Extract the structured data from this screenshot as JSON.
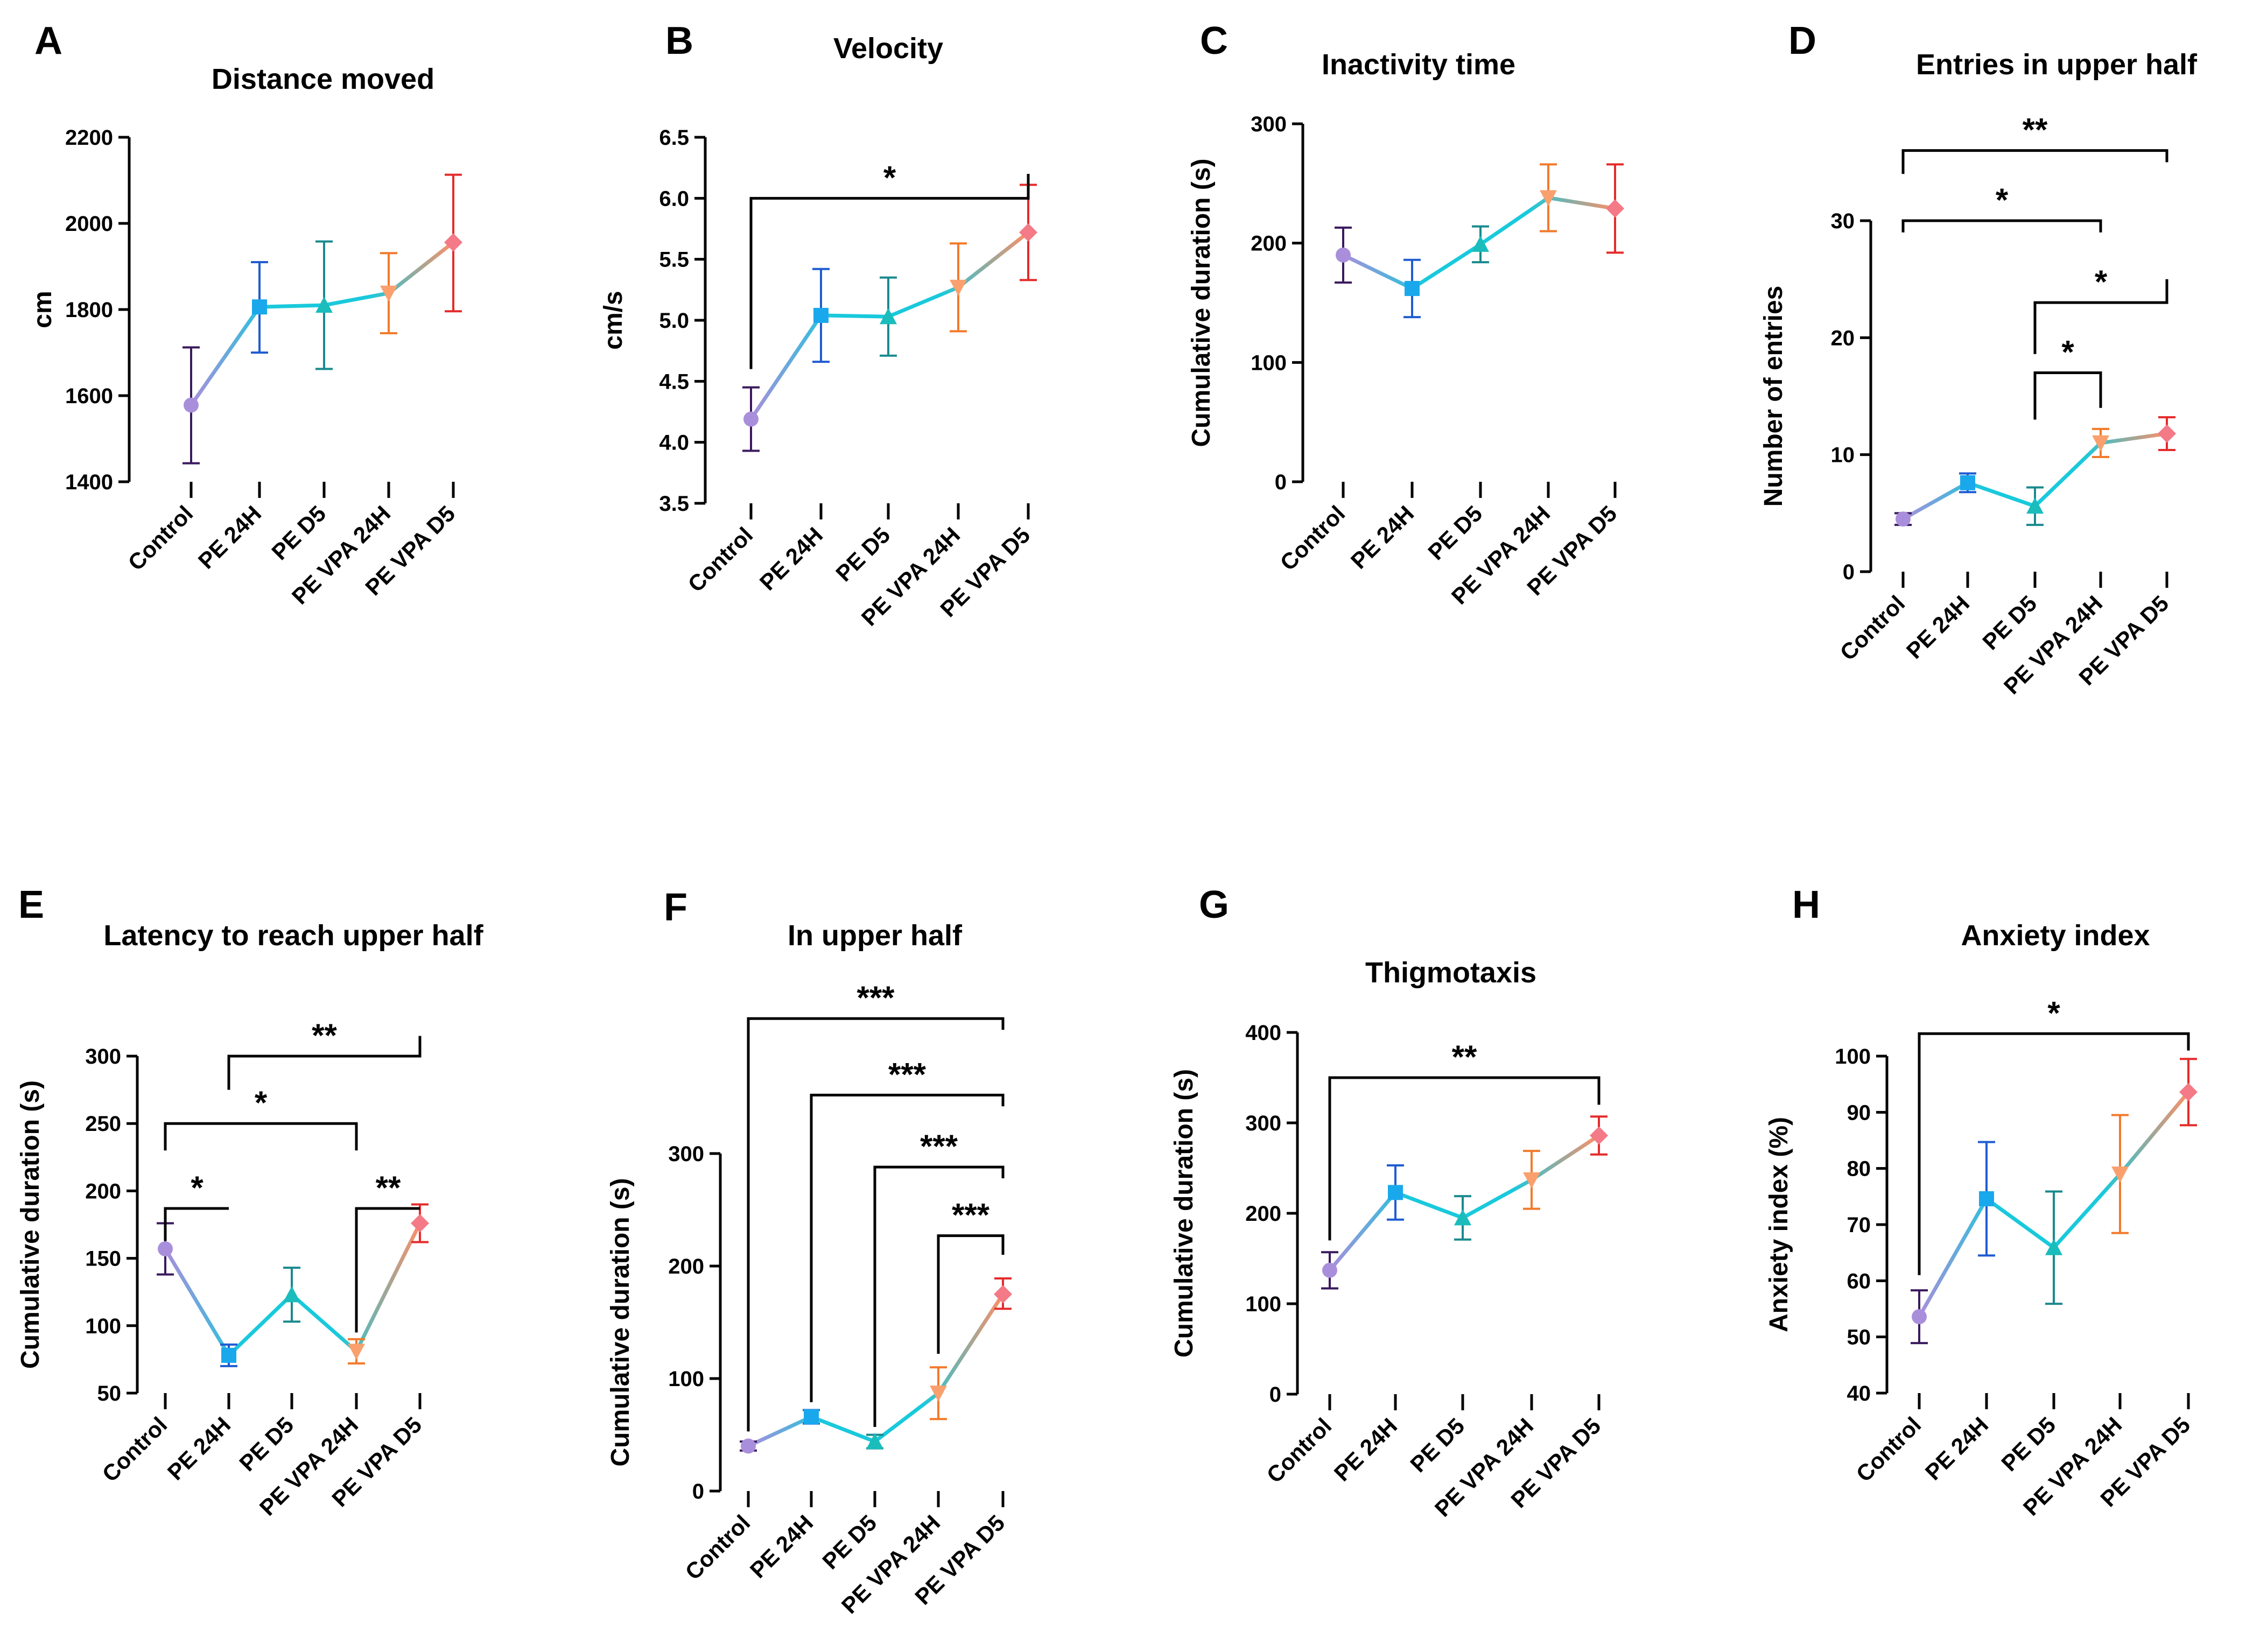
{
  "figure": {
    "groups": [
      "Control",
      "PE 24H",
      "PE D5",
      "PE VPA 24H",
      "PE VPA D5"
    ],
    "colors": {
      "line_start": "#a98fdb",
      "line_mid": "#19c9dc",
      "line_end": "#ff8f66",
      "marker_control": "#a98fdb",
      "marker_pe24h": "#1aa8ec",
      "marker_ped5": "#1abcbc",
      "marker_pevpa24h": "#f9a06e",
      "marker_pevpad5": "#f37a86",
      "error_control": "#3a1a5e",
      "error_pe24h": "#1f5cd1",
      "error_ped5": "#1a8a8e",
      "error_pevpa24h": "#f27a2c",
      "error_pevpad5": "#e52b2b",
      "axis": "#000000"
    }
  },
  "chart_data": [
    {
      "id": "A",
      "letter": "A",
      "type": "line",
      "title": "Distance moved",
      "ylabel": "cm",
      "ylim": [
        1400,
        2200
      ],
      "yticks": [
        1400,
        1600,
        1800,
        2000,
        2200
      ],
      "ytick_labels": [
        "1400",
        "1600",
        "1800",
        "2000",
        "2200"
      ],
      "categories": [
        "Control",
        "PE 24H",
        "PE D5",
        "PE VPA 24H",
        "PE VPA D5"
      ],
      "values": [
        1578,
        1806,
        1810,
        1838,
        1956
      ],
      "err_low": [
        1443,
        1700,
        1662,
        1745,
        1796
      ],
      "err_high": [
        1712,
        1910,
        1958,
        1931,
        2113
      ],
      "significance": []
    },
    {
      "id": "B",
      "letter": "B",
      "type": "line",
      "title": "Velocity",
      "ylabel": "cm/s",
      "ylim": [
        3.5,
        6.5
      ],
      "yticks": [
        3.5,
        4.0,
        4.5,
        5.0,
        5.5,
        6.0,
        6.5
      ],
      "ytick_labels": [
        "3.5",
        "4.0",
        "4.5",
        "5.0",
        "5.5",
        "6.0",
        "6.5"
      ],
      "categories": [
        "Control",
        "PE 24H",
        "PE D5",
        "PE VPA 24H",
        "PE VPA D5"
      ],
      "values": [
        4.19,
        5.04,
        5.03,
        5.27,
        5.72
      ],
      "err_low": [
        3.93,
        4.66,
        4.71,
        4.91,
        5.33
      ],
      "err_high": [
        4.45,
        5.42,
        5.35,
        5.63,
        6.11
      ],
      "significance": [
        {
          "from": 0,
          "to": 4,
          "y": 6.0,
          "drop_from": 4.6,
          "drop_to": 6.2,
          "label": "*"
        }
      ]
    },
    {
      "id": "C",
      "letter": "C",
      "type": "line",
      "title": "Inactivity time",
      "ylabel": "Cumulative duration (s)",
      "ylim": [
        0,
        300
      ],
      "yticks": [
        0,
        100,
        200,
        300
      ],
      "ytick_labels": [
        "0",
        "100",
        "200",
        "300"
      ],
      "categories": [
        "Control",
        "PE 24H",
        "PE D5",
        "PE VPA 24H",
        "PE VPA D5"
      ],
      "values": [
        190,
        162,
        199,
        238,
        229
      ],
      "err_low": [
        167,
        138,
        184,
        210,
        192
      ],
      "err_high": [
        213,
        186,
        214,
        266,
        266
      ],
      "significance": []
    },
    {
      "id": "D",
      "letter": "D",
      "type": "line",
      "title": "Entries in upper half",
      "ylabel": "Number of entries",
      "ylim": [
        0,
        30
      ],
      "yticks": [
        0,
        10,
        20,
        30
      ],
      "ytick_labels": [
        "0",
        "10",
        "20",
        "30"
      ],
      "categories": [
        "Control",
        "PE 24H",
        "PE D5",
        "PE VPA 24H",
        "PE VPA D5"
      ],
      "values": [
        4.5,
        7.6,
        5.6,
        11.0,
        11.8
      ],
      "err_low": [
        4.0,
        6.8,
        4.0,
        9.8,
        10.4
      ],
      "err_high": [
        5.0,
        8.4,
        7.2,
        12.2,
        13.2
      ],
      "significance": [
        {
          "from": 0,
          "to": 4,
          "y": 36,
          "drop_from": 34.0,
          "drop_to": 35.0,
          "label": "**"
        },
        {
          "from": 0,
          "to": 3,
          "y": 30,
          "drop_from": 29.0,
          "drop_to": 29.0,
          "label": "*"
        },
        {
          "from": 2,
          "to": 4,
          "y": 23,
          "drop_from": 18.6,
          "drop_to": 25.0,
          "label": "*"
        },
        {
          "from": 2,
          "to": 3,
          "y": 17,
          "drop_from": 13.0,
          "drop_to": 14.0,
          "label": "*"
        }
      ]
    },
    {
      "id": "E",
      "letter": "E",
      "type": "line",
      "title": "Latency to reach upper half",
      "ylabel": "Cumulative duration (s)",
      "ylim": [
        50,
        300
      ],
      "yticks": [
        50,
        100,
        150,
        200,
        250,
        300
      ],
      "ytick_labels": [
        "50",
        "100",
        "150",
        "200",
        "250",
        "300"
      ],
      "categories": [
        "Control",
        "PE 24H",
        "PE D5",
        "PE VPA 24H",
        "PE VPA D5"
      ],
      "values": [
        157,
        78,
        123,
        81,
        176
      ],
      "err_low": [
        138,
        70,
        103,
        72,
        162
      ],
      "err_high": [
        176,
        86,
        143,
        90,
        190
      ],
      "significance": [
        {
          "from": 1,
          "to": 4,
          "y": 300,
          "drop_from": 275,
          "drop_to": 315,
          "label": "**"
        },
        {
          "from": 0,
          "to": 3,
          "y": 250,
          "drop_from": 230,
          "drop_to": 230,
          "label": "*"
        },
        {
          "from": 0,
          "to": 1,
          "y": 187,
          "drop_from": 163,
          "drop_to": 187,
          "label": "*"
        },
        {
          "from": 3,
          "to": 4,
          "y": 187,
          "drop_from": 95,
          "drop_to": 187,
          "label": "**"
        }
      ]
    },
    {
      "id": "F",
      "letter": "F",
      "type": "line",
      "title": "In upper half",
      "ylabel": "Cumulative duration (s)",
      "ylim": [
        0,
        300
      ],
      "yticks": [
        0,
        100,
        200,
        300
      ],
      "ytick_labels": [
        "0",
        "100",
        "200",
        "300"
      ],
      "categories": [
        "Control",
        "PE 24H",
        "PE D5",
        "PE VPA 24H",
        "PE VPA D5"
      ],
      "values": [
        40,
        66,
        44,
        87,
        175
      ],
      "err_low": [
        36,
        60,
        38,
        64,
        162
      ],
      "err_high": [
        44,
        72,
        50,
        110,
        189
      ],
      "significance": [
        {
          "from": 0,
          "to": 4,
          "y": 420,
          "drop_from": 53,
          "drop_to": 410,
          "label": "***"
        },
        {
          "from": 1,
          "to": 4,
          "y": 352,
          "drop_from": 79,
          "drop_to": 342,
          "label": "***"
        },
        {
          "from": 2,
          "to": 4,
          "y": 288,
          "drop_from": 57,
          "drop_to": 278,
          "label": "***"
        },
        {
          "from": 3,
          "to": 4,
          "y": 227,
          "drop_from": 122,
          "drop_to": 210,
          "label": "***"
        }
      ]
    },
    {
      "id": "G",
      "letter": "G",
      "type": "line",
      "title": "Thigmotaxis",
      "ylabel": "Cumulative duration (s)",
      "ylim": [
        0,
        400
      ],
      "yticks": [
        0,
        100,
        200,
        300,
        400
      ],
      "ytick_labels": [
        "0",
        "100",
        "200",
        "300",
        "400"
      ],
      "categories": [
        "Control",
        "PE 24H",
        "PE D5",
        "PE VPA 24H",
        "PE VPA D5"
      ],
      "values": [
        137,
        223,
        195,
        237,
        286
      ],
      "err_low": [
        117,
        193,
        171,
        205,
        265
      ],
      "err_high": [
        157,
        253,
        219,
        269,
        307
      ],
      "significance": [
        {
          "from": 0,
          "to": 4,
          "y": 350,
          "drop_from": 170,
          "drop_to": 320,
          "label": "**"
        }
      ]
    },
    {
      "id": "H",
      "letter": "H",
      "type": "line",
      "title": "Anxiety index",
      "ylabel": "Anxiety index (%)",
      "ylim": [
        40,
        100
      ],
      "yticks": [
        40,
        50,
        60,
        70,
        80,
        90,
        100
      ],
      "ytick_labels": [
        "40",
        "50",
        "60",
        "70",
        "80",
        "90",
        "100"
      ],
      "categories": [
        "Control",
        "PE 24H",
        "PE D5",
        "PE VPA 24H",
        "PE VPA D5"
      ],
      "values": [
        53.6,
        74.6,
        65.9,
        79.0,
        93.6
      ],
      "err_low": [
        48.9,
        64.5,
        55.9,
        68.5,
        87.7
      ],
      "err_high": [
        58.3,
        84.7,
        75.9,
        89.5,
        99.5
      ],
      "significance": [
        {
          "from": 0,
          "to": 4,
          "y": 104,
          "drop_from": 61,
          "drop_to": 101,
          "label": "*"
        }
      ]
    }
  ]
}
